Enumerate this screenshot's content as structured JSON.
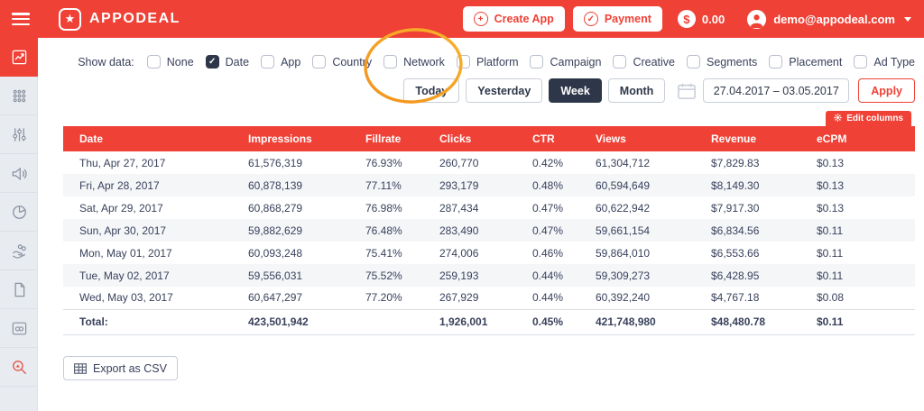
{
  "topbar": {
    "brand": "APPODEAL",
    "create_app_label": "Create App",
    "payment_label": "Payment",
    "balance": "0.00",
    "account_email": "demo@appodeal.com"
  },
  "sidebar": {
    "items": [
      {
        "icon": "line-chart-icon",
        "active": true
      },
      {
        "icon": "apps-grid-icon",
        "active": false
      },
      {
        "icon": "sliders-icon",
        "active": false
      },
      {
        "icon": "megaphone-icon",
        "active": false
      },
      {
        "icon": "pie-chart-icon",
        "active": false
      },
      {
        "icon": "hand-coins-icon",
        "active": false
      },
      {
        "icon": "document-icon",
        "active": false
      },
      {
        "icon": "window-link-icon",
        "active": false
      },
      {
        "icon": "search-chart-icon",
        "active": false,
        "tint": "red"
      }
    ]
  },
  "filters": {
    "show_data_label": "Show data:",
    "options": [
      {
        "label": "None",
        "checked": false
      },
      {
        "label": "Date",
        "checked": true
      },
      {
        "label": "App",
        "checked": false
      },
      {
        "label": "Country",
        "checked": false
      },
      {
        "label": "Network",
        "checked": false
      },
      {
        "label": "Platform",
        "checked": false
      },
      {
        "label": "Campaign",
        "checked": false
      },
      {
        "label": "Creative",
        "checked": false
      },
      {
        "label": "Segments",
        "checked": false
      },
      {
        "label": "Placement",
        "checked": false
      },
      {
        "label": "Ad Type",
        "checked": false
      }
    ]
  },
  "date_controls": {
    "presets": [
      {
        "label": "Today",
        "active": false
      },
      {
        "label": "Yesterday",
        "active": false
      },
      {
        "label": "Week",
        "active": true
      },
      {
        "label": "Month",
        "active": false
      }
    ],
    "range_value": "27.04.2017 – 03.05.2017",
    "apply_label": "Apply"
  },
  "table": {
    "edit_columns_label": "Edit columns",
    "columns": [
      "Date",
      "Impressions",
      "Fillrate",
      "Clicks",
      "CTR",
      "Views",
      "Revenue",
      "eCPM"
    ],
    "rows": [
      [
        "Thu, Apr 27, 2017",
        "61,576,319",
        "76.93%",
        "260,770",
        "0.42%",
        "61,304,712",
        "$7,829.83",
        "$0.13"
      ],
      [
        "Fri, Apr 28, 2017",
        "60,878,139",
        "77.11%",
        "293,179",
        "0.48%",
        "60,594,649",
        "$8,149.30",
        "$0.13"
      ],
      [
        "Sat, Apr 29, 2017",
        "60,868,279",
        "76.98%",
        "287,434",
        "0.47%",
        "60,622,942",
        "$7,917.30",
        "$0.13"
      ],
      [
        "Sun, Apr 30, 2017",
        "59,882,629",
        "76.48%",
        "283,490",
        "0.47%",
        "59,661,154",
        "$6,834.56",
        "$0.11"
      ],
      [
        "Mon, May 01, 2017",
        "60,093,248",
        "75.41%",
        "274,006",
        "0.46%",
        "59,864,010",
        "$6,553.66",
        "$0.11"
      ],
      [
        "Tue, May 02, 2017",
        "59,556,031",
        "75.52%",
        "259,193",
        "0.44%",
        "59,309,273",
        "$6,428.95",
        "$0.11"
      ],
      [
        "Wed, May 03, 2017",
        "60,647,297",
        "77.20%",
        "267,929",
        "0.44%",
        "60,392,240",
        "$4,767.18",
        "$0.08"
      ]
    ],
    "total_row": [
      "Total:",
      "423,501,942",
      "",
      "1,926,001",
      "0.45%",
      "421,748,980",
      "$48,480.78",
      "$0.11"
    ]
  },
  "export": {
    "label": "Export as CSV"
  },
  "colors": {
    "brand_red": "#EF4136",
    "dark_navy": "#2E3749",
    "annotation_orange": "#F5A623",
    "row_alt": "#F4F6F8"
  }
}
